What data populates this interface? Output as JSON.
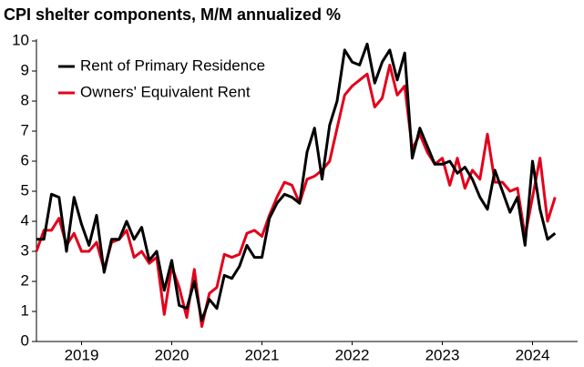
{
  "chart_data": {
    "type": "line",
    "title": "CPI shelter components, M/M annualized %",
    "x": [
      2019.0,
      2019.083,
      2019.167,
      2019.25,
      2019.333,
      2019.417,
      2019.5,
      2019.583,
      2019.667,
      2019.75,
      2019.833,
      2019.917,
      2020.0,
      2020.083,
      2020.167,
      2020.25,
      2020.333,
      2020.417,
      2020.5,
      2020.583,
      2020.667,
      2020.75,
      2020.833,
      2020.917,
      2021.0,
      2021.083,
      2021.167,
      2021.25,
      2021.333,
      2021.417,
      2021.5,
      2021.583,
      2021.667,
      2021.75,
      2021.833,
      2021.917,
      2022.0,
      2022.083,
      2022.167,
      2022.25,
      2022.333,
      2022.417,
      2022.5,
      2022.583,
      2022.667,
      2022.75,
      2022.833,
      2022.917,
      2023.0,
      2023.083,
      2023.167,
      2023.25,
      2023.333,
      2023.417,
      2023.5,
      2023.583,
      2023.667,
      2023.75,
      2023.833,
      2023.917,
      2024.0,
      2024.083,
      2024.167,
      2024.25,
      2024.333,
      2024.417,
      2024.5,
      2024.583,
      2024.667,
      2024.75
    ],
    "series": [
      {
        "name": "Rent of Primary Residence",
        "color": "#000000",
        "values": [
          3.4,
          3.4,
          4.9,
          4.8,
          3.0,
          4.8,
          3.9,
          3.2,
          4.2,
          2.3,
          3.4,
          3.4,
          4.0,
          3.4,
          3.8,
          2.7,
          3.0,
          1.7,
          2.7,
          1.2,
          1.1,
          2.0,
          0.7,
          1.4,
          1.1,
          2.2,
          2.1,
          2.5,
          3.2,
          2.8,
          2.8,
          4.1,
          4.6,
          4.9,
          4.8,
          4.6,
          6.3,
          7.1,
          5.4,
          7.2,
          8.0,
          9.7,
          9.3,
          9.2,
          9.9,
          8.6,
          9.3,
          9.7,
          8.7,
          9.6,
          6.1,
          7.1,
          6.5,
          5.9,
          5.9,
          6.0,
          5.6,
          5.8,
          5.4,
          4.8,
          4.4,
          5.7,
          5.0,
          4.3,
          4.8,
          3.2,
          6.0,
          4.4,
          3.4,
          3.6
        ]
      },
      {
        "name": "Owners' Equivalent Rent",
        "color": "#e3001b",
        "values": [
          3.0,
          3.7,
          3.7,
          4.1,
          3.2,
          3.6,
          3.0,
          3.0,
          3.3,
          2.4,
          3.3,
          3.4,
          3.7,
          2.8,
          3.0,
          2.6,
          2.8,
          0.9,
          2.5,
          1.8,
          0.8,
          2.4,
          0.5,
          1.6,
          1.8,
          2.9,
          2.8,
          2.9,
          3.6,
          3.7,
          3.5,
          4.2,
          4.8,
          5.3,
          5.2,
          4.6,
          5.4,
          5.5,
          5.7,
          6.0,
          7.1,
          8.2,
          8.5,
          8.7,
          8.9,
          7.8,
          8.1,
          9.2,
          8.2,
          8.5,
          6.4,
          6.9,
          6.3,
          5.9,
          6.1,
          5.2,
          6.1,
          5.1,
          5.7,
          5.4,
          6.9,
          5.3,
          5.3,
          5.0,
          5.1,
          3.5,
          4.8,
          6.1,
          4.0,
          4.8
        ]
      }
    ],
    "xlim": [
      2019,
      2025
    ],
    "xticks": [
      {
        "value": 2019.5,
        "label": "2019"
      },
      {
        "value": 2020.5,
        "label": "2020"
      },
      {
        "value": 2021.5,
        "label": "2021"
      },
      {
        "value": 2022.5,
        "label": "2022"
      },
      {
        "value": 2023.5,
        "label": "2023"
      },
      {
        "value": 2024.5,
        "label": "2024"
      }
    ],
    "ylim": [
      0,
      10
    ],
    "yticks": [
      0,
      1,
      2,
      3,
      4,
      5,
      6,
      7,
      8,
      9,
      10
    ],
    "grid": false,
    "legend": "upper left"
  }
}
